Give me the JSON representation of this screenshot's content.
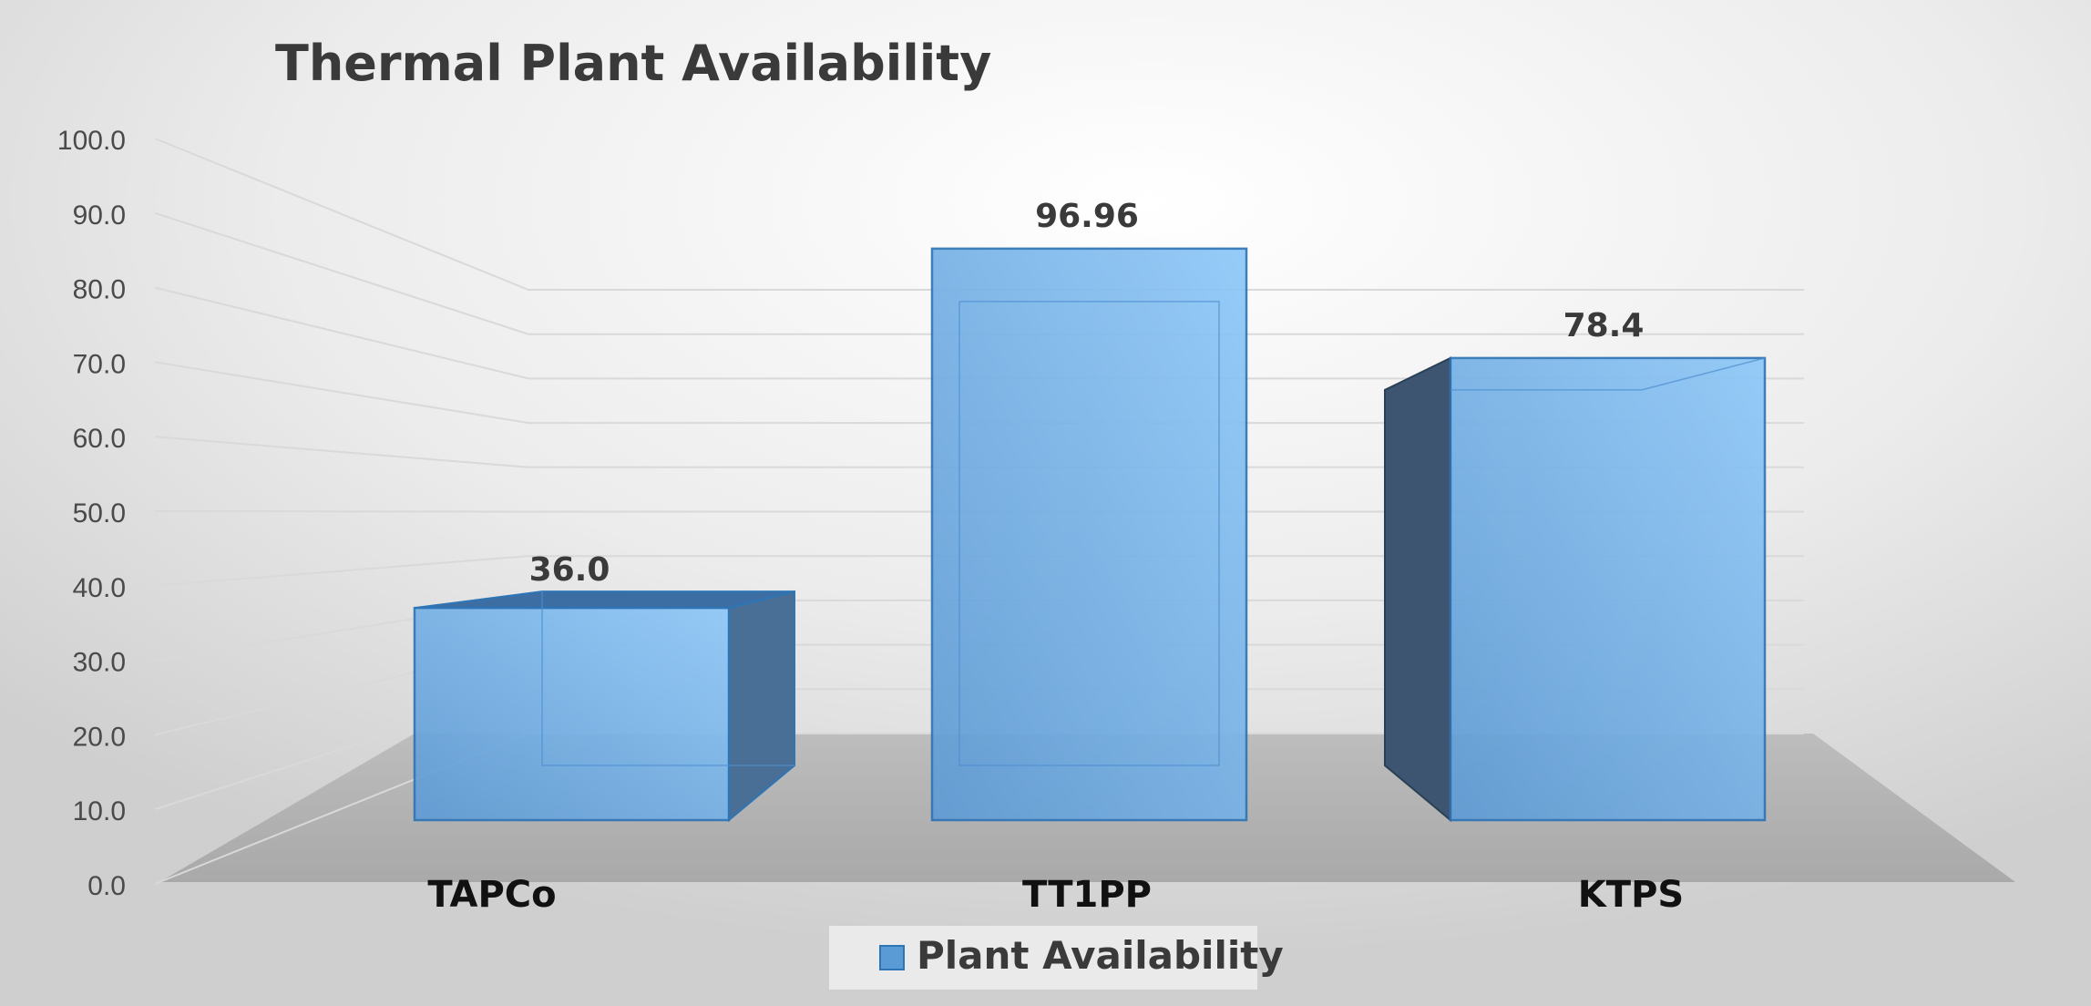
{
  "chart_data": {
    "type": "bar",
    "title": "Thermal Plant Availability",
    "categories": [
      "TAPCo",
      "TT1PP",
      "KTPS"
    ],
    "series": [
      {
        "name": "Plant Availability",
        "values": [
          36.0,
          96.96,
          78.4
        ],
        "labels": [
          "36.0",
          "96.96",
          "78.4"
        ],
        "color": "#5b9bd5"
      }
    ],
    "ylim": [
      0,
      100
    ],
    "yticks": [
      "0.0",
      "10.0",
      "20.0",
      "30.0",
      "40.0",
      "50.0",
      "60.0",
      "70.0",
      "80.0",
      "90.0",
      "100.0"
    ],
    "grid": true,
    "legend_position": "bottom",
    "style": "3d-column"
  }
}
